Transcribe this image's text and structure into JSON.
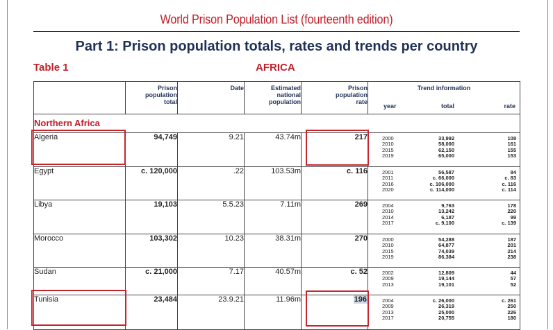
{
  "header": {
    "doc_title": "World Prison Population List (fourteenth edition)",
    "part_title": "Part 1: Prison population totals, rates and trends per country",
    "table_label": "Table 1",
    "region_label": "AFRICA"
  },
  "columns": {
    "prison_total": [
      "Prison",
      "population",
      "total"
    ],
    "date": "Date",
    "national_pop": [
      "Estimated",
      "national",
      "population"
    ],
    "rate": [
      "Prison",
      "population",
      "rate"
    ],
    "trend_title": "Trend information",
    "trend_year": "year",
    "trend_total": "total",
    "trend_rate": "rate"
  },
  "region": "Northern Africa",
  "rows": [
    {
      "country": "Algeria",
      "total": "94,749",
      "date": "9.21",
      "population": "43.74m",
      "rate": "217",
      "trend_years": [
        "2000",
        "2010",
        "2015",
        "2019"
      ],
      "trend_totals": [
        "33,992",
        "58,000",
        "62,150",
        "65,000"
      ],
      "trend_rates": [
        "108",
        "161",
        "155",
        "153"
      ]
    },
    {
      "country": "Egypt",
      "total": "c. 120,000",
      "date": ".22",
      "population": "103.53m",
      "rate": "c. 116",
      "trend_years": [
        "2001",
        "2011",
        "2016",
        "2020"
      ],
      "trend_totals": [
        "56,587",
        "c. 66,000",
        "c. 106,000",
        "c. 114,000"
      ],
      "trend_rates": [
        "84",
        "c. 83",
        "c. 116",
        "c. 114"
      ]
    },
    {
      "country": "Libya",
      "total": "19,103",
      "date": "5.5.23",
      "population": "7.11m",
      "rate": "269",
      "trend_years": [
        "2004",
        "2010",
        "2014",
        "2017"
      ],
      "trend_totals": [
        "9,763",
        "13,242",
        "6,187",
        "c. 9,100"
      ],
      "trend_rates": [
        "178",
        "220",
        "99",
        "c. 139"
      ]
    },
    {
      "country": "Morocco",
      "total": "103,302",
      "date": "10.23",
      "population": "38.31m",
      "rate": "270",
      "trend_years": [
        "2000",
        "2010",
        "2015",
        "2019"
      ],
      "trend_totals": [
        "54,288",
        "64,877",
        "74,039",
        "86,384"
      ],
      "trend_rates": [
        "187",
        "201",
        "214",
        "238"
      ]
    },
    {
      "country": "Sudan",
      "total": "c. 21,000",
      "date": "7.17",
      "population": "40.57m",
      "rate": "c. 52",
      "trend_years": [
        "2002",
        "2009",
        "2013"
      ],
      "trend_totals": [
        "12,809",
        "19,144",
        "19,101"
      ],
      "trend_rates": [
        "44",
        "57",
        "52"
      ]
    },
    {
      "country": "Tunisia",
      "total": "23,484",
      "date": "23.9.21",
      "population": "11.96m",
      "rate": "196",
      "trend_years": [
        "2004",
        "2009",
        "2013",
        "2017"
      ],
      "trend_totals": [
        "c. 26,000",
        "26,319",
        "25,000",
        "20,755"
      ],
      "trend_rates": [
        "c. 261",
        "250",
        "226",
        "180"
      ]
    }
  ],
  "colors": {
    "accent_red": "#c0202a",
    "title_navy": "#1f3156",
    "highlight_box": "#c7242d",
    "selection": "#cfd8e6"
  }
}
